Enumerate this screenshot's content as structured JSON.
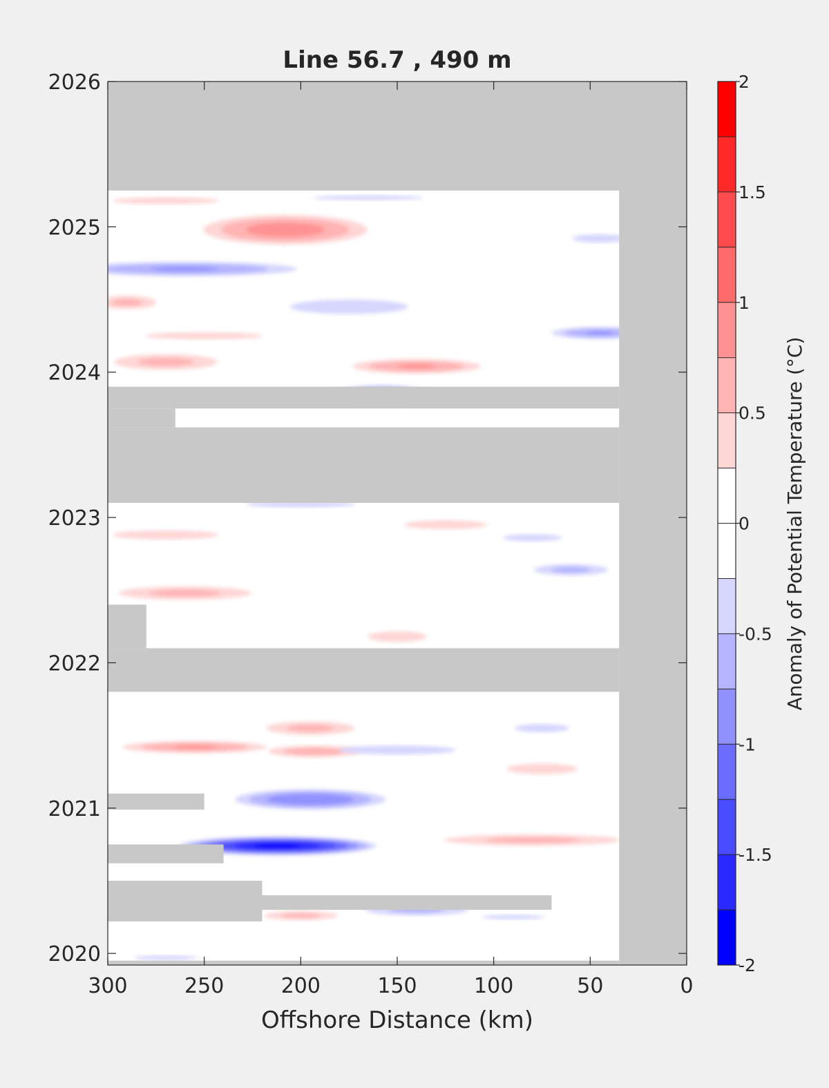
{
  "chart_data": {
    "type": "heatmap",
    "title": "Line 56.7 , 490 m",
    "xlabel": "Offshore Distance (km)",
    "ylabel": "",
    "x_direction": "reversed",
    "xlim": [
      0,
      300
    ],
    "ylim": [
      2019.92,
      2026
    ],
    "x_ticks": [
      300,
      250,
      200,
      150,
      100,
      50,
      0
    ],
    "y_ticks": [
      2020,
      2021,
      2022,
      2023,
      2024,
      2025,
      2026
    ],
    "colorbar": {
      "label": "Anomaly of Potential Temperature (°C)",
      "range": [
        -2,
        2
      ],
      "ticks": [
        2,
        1.5,
        1,
        0.5,
        0,
        -0.5,
        -1,
        -1.5,
        -2
      ],
      "levels": [
        {
          "from": 1.75,
          "to": 2,
          "color": "#ff0000"
        },
        {
          "from": 1.5,
          "to": 1.75,
          "color": "#ff2a2a"
        },
        {
          "from": 1.25,
          "to": 1.5,
          "color": "#ff4b4b"
        },
        {
          "from": 1,
          "to": 1.25,
          "color": "#ff6b6b"
        },
        {
          "from": 0.75,
          "to": 1,
          "color": "#ff9292"
        },
        {
          "from": 0.5,
          "to": 0.75,
          "color": "#ffb4b4"
        },
        {
          "from": 0.25,
          "to": 0.5,
          "color": "#ffd6d6"
        },
        {
          "from": 0,
          "to": 0.25,
          "color": "#ffffff"
        },
        {
          "from": -0.25,
          "to": 0,
          "color": "#ffffff"
        },
        {
          "from": -0.5,
          "to": -0.25,
          "color": "#d6d6ff"
        },
        {
          "from": -0.75,
          "to": -0.5,
          "color": "#b4b4ff"
        },
        {
          "from": -1,
          "to": -0.75,
          "color": "#9292ff"
        },
        {
          "from": -1.25,
          "to": -1,
          "color": "#6b6bff"
        },
        {
          "from": -1.5,
          "to": -1.25,
          "color": "#4b4bff"
        },
        {
          "from": -1.75,
          "to": -1.5,
          "color": "#2a2aff"
        },
        {
          "from": -2,
          "to": -1.75,
          "color": "#0000ff"
        }
      ]
    },
    "no_data_color": "#c8c8c8",
    "no_data_regions": [
      {
        "x": [
          0,
          300
        ],
        "y": [
          2025.25,
          2026
        ]
      },
      {
        "x": [
          0,
          35
        ],
        "y": [
          2019.92,
          2026
        ]
      },
      {
        "x": [
          35,
          300
        ],
        "y": [
          2023.1,
          2023.62
        ]
      },
      {
        "x": [
          35,
          300
        ],
        "y": [
          2023.75,
          2023.9
        ]
      },
      {
        "x": [
          265,
          300
        ],
        "y": [
          2023.62,
          2023.75
        ]
      },
      {
        "x": [
          35,
          300
        ],
        "y": [
          2021.8,
          2022.1
        ]
      },
      {
        "x": [
          280,
          300
        ],
        "y": [
          2022.1,
          2022.4
        ]
      },
      {
        "x": [
          250,
          300
        ],
        "y": [
          2020.99,
          2021.1
        ]
      },
      {
        "x": [
          240,
          300
        ],
        "y": [
          2020.62,
          2020.75
        ]
      },
      {
        "x": [
          70,
          300
        ],
        "y": [
          2020.3,
          2020.4
        ]
      },
      {
        "x": [
          220,
          300
        ],
        "y": [
          2020.22,
          2020.5
        ]
      },
      {
        "x": [
          35,
          300
        ],
        "y": [
          2019.92,
          2019.95
        ]
      }
    ],
    "anomaly_features": [
      {
        "x": 208,
        "y": 2024.98,
        "rx": 50,
        "ry": 0.12,
        "value": 0.9
      },
      {
        "x": 140,
        "y": 2024.04,
        "rx": 40,
        "ry": 0.06,
        "value": 0.8
      },
      {
        "x": 270,
        "y": 2024.07,
        "rx": 35,
        "ry": 0.07,
        "value": 0.6
      },
      {
        "x": 195,
        "y": 2021.55,
        "rx": 30,
        "ry": 0.06,
        "value": 0.6
      },
      {
        "x": 255,
        "y": 2021.42,
        "rx": 45,
        "ry": 0.05,
        "value": 0.8
      },
      {
        "x": 193,
        "y": 2021.39,
        "rx": 30,
        "ry": 0.05,
        "value": 0.7
      },
      {
        "x": 260,
        "y": 2022.48,
        "rx": 45,
        "ry": 0.06,
        "value": 0.6
      },
      {
        "x": 80,
        "y": 2020.78,
        "rx": 60,
        "ry": 0.05,
        "value": 0.6
      },
      {
        "x": 290,
        "y": 2024.48,
        "rx": 20,
        "ry": 0.06,
        "value": 0.6
      },
      {
        "x": 200,
        "y": 2020.26,
        "rx": 25,
        "ry": 0.04,
        "value": 0.6
      },
      {
        "x": 125,
        "y": 2022.95,
        "rx": 35,
        "ry": 0.05,
        "value": 0.4
      },
      {
        "x": 150,
        "y": 2022.18,
        "rx": 25,
        "ry": 0.06,
        "value": 0.4
      },
      {
        "x": 270,
        "y": 2025.18,
        "rx": 45,
        "ry": 0.04,
        "value": 0.4
      },
      {
        "x": 75,
        "y": 2021.27,
        "rx": 30,
        "ry": 0.06,
        "value": 0.4
      },
      {
        "x": 250,
        "y": 2024.25,
        "rx": 50,
        "ry": 0.04,
        "value": 0.4
      },
      {
        "x": 270,
        "y": 2022.88,
        "rx": 45,
        "ry": 0.05,
        "value": 0.4
      },
      {
        "x": 212,
        "y": 2020.74,
        "rx": 55,
        "ry": 0.07,
        "value": -1.8
      },
      {
        "x": 195,
        "y": 2021.06,
        "rx": 45,
        "ry": 0.08,
        "value": -1.0
      },
      {
        "x": 158,
        "y": 2023.84,
        "rx": 30,
        "ry": 0.08,
        "value": -1.1
      },
      {
        "x": 260,
        "y": 2024.71,
        "rx": 70,
        "ry": 0.06,
        "value": -0.8
      },
      {
        "x": 45,
        "y": 2024.27,
        "rx": 30,
        "ry": 0.05,
        "value": -0.8
      },
      {
        "x": 60,
        "y": 2022.64,
        "rx": 25,
        "ry": 0.05,
        "value": -0.6
      },
      {
        "x": 45,
        "y": 2024.92,
        "rx": 20,
        "ry": 0.04,
        "value": -0.5
      },
      {
        "x": 140,
        "y": 2020.3,
        "rx": 35,
        "ry": 0.05,
        "value": -0.6
      },
      {
        "x": 150,
        "y": 2021.4,
        "rx": 50,
        "ry": 0.05,
        "value": -0.4
      },
      {
        "x": 175,
        "y": 2024.45,
        "rx": 50,
        "ry": 0.08,
        "value": -0.4
      },
      {
        "x": 75,
        "y": 2021.55,
        "rx": 20,
        "ry": 0.04,
        "value": -0.5
      },
      {
        "x": 80,
        "y": 2022.86,
        "rx": 25,
        "ry": 0.04,
        "value": -0.4
      },
      {
        "x": 165,
        "y": 2025.2,
        "rx": 70,
        "ry": 0.04,
        "value": -0.3
      },
      {
        "x": 270,
        "y": 2019.97,
        "rx": 40,
        "ry": 0.04,
        "value": -0.3
      },
      {
        "x": 90,
        "y": 2020.25,
        "rx": 40,
        "ry": 0.04,
        "value": -0.3
      },
      {
        "x": 200,
        "y": 2023.09,
        "rx": 40,
        "ry": 0.03,
        "value": -0.5
      }
    ]
  }
}
